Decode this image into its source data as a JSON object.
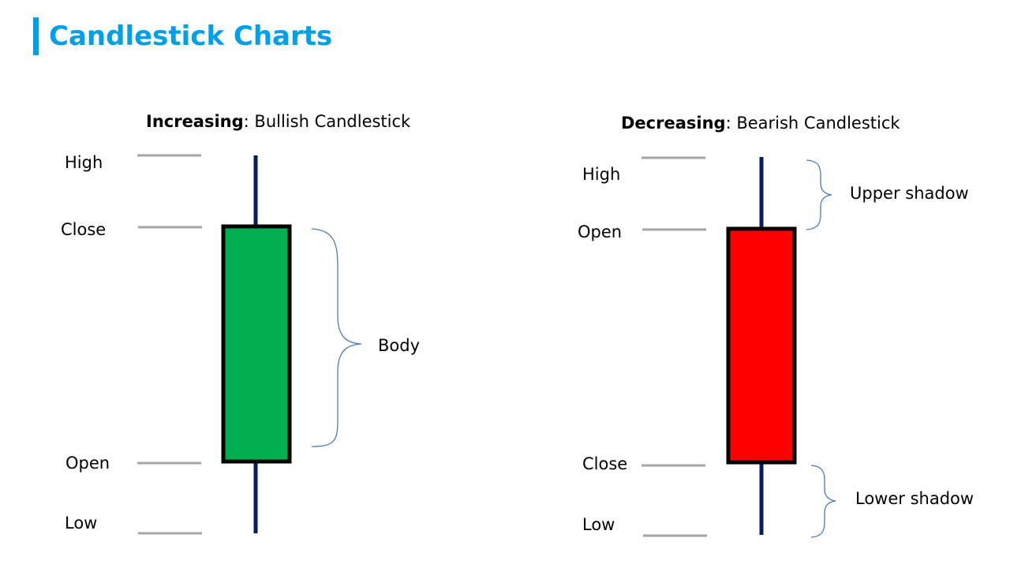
{
  "title": "Candlestick Charts",
  "bullish": {
    "heading_bold": "Increasing",
    "heading_rest": ": Bullish Candlestick",
    "labels": {
      "high": "High",
      "close": "Close",
      "open": "Open",
      "low": "Low"
    },
    "body_label": "Body",
    "body_color": "#00b050"
  },
  "bearish": {
    "heading_bold": "Decreasing",
    "heading_rest": ": Bearish Candlestick",
    "labels": {
      "high": "High",
      "open": "Open",
      "close": "Close",
      "low": "Low"
    },
    "upper_shadow_label": "Upper shadow",
    "lower_shadow_label": "Lower shadow",
    "body_color": "#ff0000"
  },
  "colors": {
    "title": "#00a0e9",
    "wick": "#002060",
    "level_line": "#a6a6a6",
    "brace": "#4a7bbd"
  }
}
